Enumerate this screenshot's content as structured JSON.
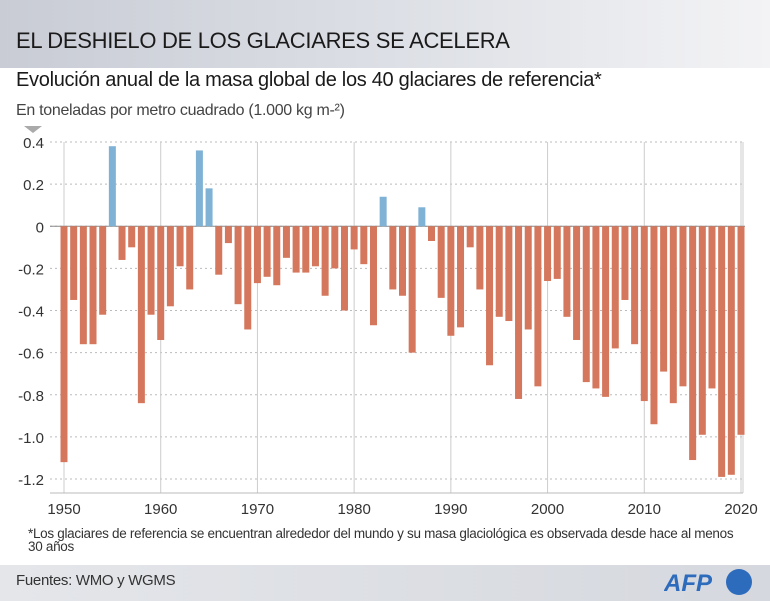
{
  "header": {
    "title": "EL DESHIELO DE LOS GLACIARES SE ACELERA",
    "subtitle": "Evolución anual de la masa global de los 40 glaciares de referencia*",
    "units": "En toneladas por metro cuadrado (1.000 kg m-²)"
  },
  "footnote": "*Los glaciares de referencia se encuentran alrededor del mundo y su masa glaciológica es observada desde hace al menos 30 años",
  "footer": {
    "source": "Fuentes: WMO y WGMS",
    "logo": "AFP"
  },
  "colors": {
    "negative": "#d4775c",
    "positive": "#80b2d5"
  },
  "chart_data": {
    "type": "bar",
    "title": "Evolución anual de la masa global de los 40 glaciares de referencia*",
    "ylabel": "En toneladas por metro cuadrado (1.000 kg m-²)",
    "xlabel": "",
    "ylim": [
      -1.2,
      0.4
    ],
    "xlim": [
      1950,
      2020
    ],
    "yticks": [
      "0.4",
      "0.2",
      "0",
      "-0.2",
      "-0.4",
      "-0.6",
      "-0.8",
      "-1.0",
      "-1.2"
    ],
    "ytick_values": [
      0.4,
      0.2,
      0,
      -0.2,
      -0.4,
      -0.6,
      -0.8,
      -1.0,
      -1.2
    ],
    "xticks": [
      "1950",
      "1960",
      "1970",
      "1980",
      "1990",
      "2000",
      "2010",
      "2020"
    ],
    "grid": true,
    "x": [
      1950,
      1951,
      1952,
      1953,
      1954,
      1955,
      1956,
      1957,
      1958,
      1959,
      1960,
      1961,
      1962,
      1963,
      1964,
      1965,
      1966,
      1967,
      1968,
      1969,
      1970,
      1971,
      1972,
      1973,
      1974,
      1975,
      1976,
      1977,
      1978,
      1979,
      1980,
      1981,
      1982,
      1983,
      1984,
      1985,
      1986,
      1987,
      1988,
      1989,
      1990,
      1991,
      1992,
      1993,
      1994,
      1995,
      1996,
      1997,
      1998,
      1999,
      2000,
      2001,
      2002,
      2003,
      2004,
      2005,
      2006,
      2007,
      2008,
      2009,
      2010,
      2011,
      2012,
      2013,
      2014,
      2015,
      2016,
      2017,
      2018,
      2019,
      2020
    ],
    "values": [
      -1.12,
      -0.35,
      -0.56,
      -0.56,
      -0.42,
      0.38,
      -0.16,
      -0.1,
      -0.84,
      -0.42,
      -0.54,
      -0.38,
      -0.19,
      -0.3,
      0.36,
      0.18,
      -0.23,
      -0.08,
      -0.37,
      -0.49,
      -0.27,
      -0.24,
      -0.28,
      -0.15,
      -0.22,
      -0.22,
      -0.19,
      -0.33,
      -0.2,
      -0.4,
      -0.11,
      -0.18,
      -0.47,
      0.14,
      -0.3,
      -0.33,
      -0.6,
      0.09,
      -0.07,
      -0.34,
      -0.52,
      -0.48,
      -0.1,
      -0.3,
      -0.66,
      -0.43,
      -0.45,
      -0.82,
      -0.49,
      -0.76,
      -0.26,
      -0.25,
      -0.43,
      -0.54,
      -0.74,
      -0.77,
      -0.81,
      -0.58,
      -0.35,
      -0.56,
      -0.83,
      -0.94,
      -0.69,
      -0.84,
      -0.76,
      -1.11,
      -0.99,
      -0.77,
      -1.19,
      -1.18,
      -0.99
    ]
  }
}
